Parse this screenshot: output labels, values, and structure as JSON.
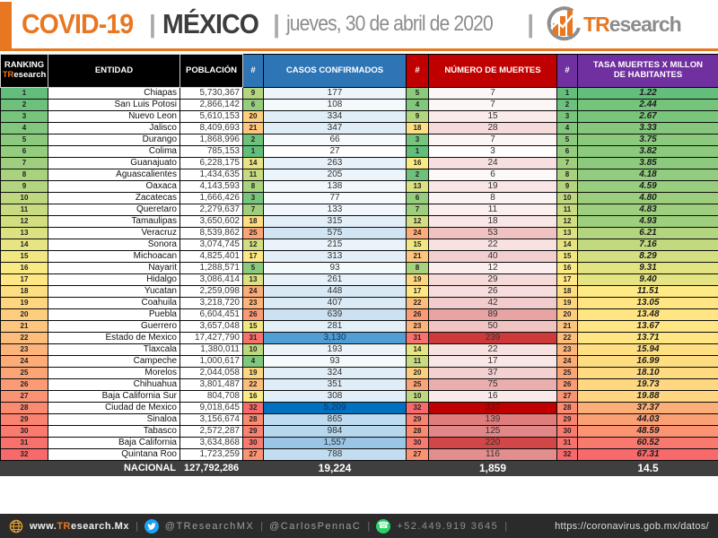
{
  "header": {
    "title": "COVID-19",
    "separator": "|",
    "region": "MÉXICO",
    "date": "jueves, 30 de abril de 2020",
    "brand": {
      "prefix": "TR",
      "suffix": "esearch"
    }
  },
  "colors": {
    "accent_orange": "#E87722",
    "header_blue": "#2E75B6",
    "header_red": "#C00000",
    "header_purple": "#7030A0",
    "nacional_bg": "#3F3F3F",
    "footer_bg": "#2B2B2B",
    "twitter_blue": "#1DA1F2",
    "whatsapp_green": "#25D366",
    "scale_green": "#63BE7B",
    "scale_yellow": "#FFEB84",
    "scale_red": "#F8696B",
    "casos_blue": "#0070C0",
    "muertes_red": "#C00000"
  },
  "chart_data": {
    "type": "table",
    "title": "COVID-19 | MÉXICO | jueves, 30 de abril de 2020",
    "headers": {
      "ranking_line1": "RANKING",
      "brand_prefix": "TR",
      "brand_suffix": "esearch",
      "entidad": "ENTIDAD",
      "poblacion": "POBLACIÓN",
      "hash": "#",
      "casos": "CASOS CONFIRMADOS",
      "muertes": "NÚMERO DE MUERTES",
      "tasa": "TASA MUERTES X MILLON DE HABITANTES"
    },
    "rows": [
      {
        "rank": 1,
        "entidad": "Chiapas",
        "poblacion": "5,730,367",
        "casos_rank": 9,
        "casos": "177",
        "muertes_rank": 5,
        "muertes": "7",
        "tasa_rank": 1,
        "tasa": "1.22"
      },
      {
        "rank": 2,
        "entidad": "San Luis Potosi",
        "poblacion": "2,866,142",
        "casos_rank": 6,
        "casos": "108",
        "muertes_rank": 4,
        "muertes": "7",
        "tasa_rank": 2,
        "tasa": "2.44"
      },
      {
        "rank": 3,
        "entidad": "Nuevo Leon",
        "poblacion": "5,610,153",
        "casos_rank": 20,
        "casos": "334",
        "muertes_rank": 9,
        "muertes": "15",
        "tasa_rank": 3,
        "tasa": "2.67"
      },
      {
        "rank": 4,
        "entidad": "Jalisco",
        "poblacion": "8,409,693",
        "casos_rank": 21,
        "casos": "347",
        "muertes_rank": 18,
        "muertes": "28",
        "tasa_rank": 4,
        "tasa": "3.33"
      },
      {
        "rank": 5,
        "entidad": "Durango",
        "poblacion": "1,868,996",
        "casos_rank": 2,
        "casos": "66",
        "muertes_rank": 3,
        "muertes": "7",
        "tasa_rank": 5,
        "tasa": "3.75"
      },
      {
        "rank": 6,
        "entidad": "Colima",
        "poblacion": "785,153",
        "casos_rank": 1,
        "casos": "27",
        "muertes_rank": 1,
        "muertes": "3",
        "tasa_rank": 6,
        "tasa": "3.82"
      },
      {
        "rank": 7,
        "entidad": "Guanajuato",
        "poblacion": "6,228,175",
        "casos_rank": 14,
        "casos": "263",
        "muertes_rank": 16,
        "muertes": "24",
        "tasa_rank": 7,
        "tasa": "3.85"
      },
      {
        "rank": 8,
        "entidad": "Aguascalientes",
        "poblacion": "1,434,635",
        "casos_rank": 11,
        "casos": "205",
        "muertes_rank": 2,
        "muertes": "6",
        "tasa_rank": 8,
        "tasa": "4.18"
      },
      {
        "rank": 9,
        "entidad": "Oaxaca",
        "poblacion": "4,143,593",
        "casos_rank": 8,
        "casos": "138",
        "muertes_rank": 13,
        "muertes": "19",
        "tasa_rank": 9,
        "tasa": "4.59"
      },
      {
        "rank": 10,
        "entidad": "Zacatecas",
        "poblacion": "1,666,426",
        "casos_rank": 3,
        "casos": "77",
        "muertes_rank": 6,
        "muertes": "8",
        "tasa_rank": 10,
        "tasa": "4.80"
      },
      {
        "rank": 11,
        "entidad": "Queretaro",
        "poblacion": "2,279,637",
        "casos_rank": 7,
        "casos": "133",
        "muertes_rank": 7,
        "muertes": "11",
        "tasa_rank": 11,
        "tasa": "4.83"
      },
      {
        "rank": 12,
        "entidad": "Tamaulipas",
        "poblacion": "3,650,602",
        "casos_rank": 18,
        "casos": "315",
        "muertes_rank": 12,
        "muertes": "18",
        "tasa_rank": 12,
        "tasa": "4.93"
      },
      {
        "rank": 13,
        "entidad": "Veracruz",
        "poblacion": "8,539,862",
        "casos_rank": 25,
        "casos": "575",
        "muertes_rank": 24,
        "muertes": "53",
        "tasa_rank": 13,
        "tasa": "6.21"
      },
      {
        "rank": 14,
        "entidad": "Sonora",
        "poblacion": "3,074,745",
        "casos_rank": 12,
        "casos": "215",
        "muertes_rank": 15,
        "muertes": "22",
        "tasa_rank": 14,
        "tasa": "7.16"
      },
      {
        "rank": 15,
        "entidad": "Michoacan",
        "poblacion": "4,825,401",
        "casos_rank": 17,
        "casos": "313",
        "muertes_rank": 21,
        "muertes": "40",
        "tasa_rank": 15,
        "tasa": "8.29"
      },
      {
        "rank": 16,
        "entidad": "Nayarit",
        "poblacion": "1,288,571",
        "casos_rank": 5,
        "casos": "93",
        "muertes_rank": 8,
        "muertes": "12",
        "tasa_rank": 16,
        "tasa": "9.31"
      },
      {
        "rank": 17,
        "entidad": "Hidalgo",
        "poblacion": "3,086,414",
        "casos_rank": 13,
        "casos": "261",
        "muertes_rank": 19,
        "muertes": "29",
        "tasa_rank": 17,
        "tasa": "9.40"
      },
      {
        "rank": 18,
        "entidad": "Yucatan",
        "poblacion": "2,259,098",
        "casos_rank": 24,
        "casos": "448",
        "muertes_rank": 17,
        "muertes": "26",
        "tasa_rank": 18,
        "tasa": "11.51"
      },
      {
        "rank": 19,
        "entidad": "Coahuila",
        "poblacion": "3,218,720",
        "casos_rank": 23,
        "casos": "407",
        "muertes_rank": 22,
        "muertes": "42",
        "tasa_rank": 19,
        "tasa": "13.05"
      },
      {
        "rank": 20,
        "entidad": "Puebla",
        "poblacion": "6,604,451",
        "casos_rank": 26,
        "casos": "639",
        "muertes_rank": 26,
        "muertes": "89",
        "tasa_rank": 20,
        "tasa": "13.48"
      },
      {
        "rank": 21,
        "entidad": "Guerrero",
        "poblacion": "3,657,048",
        "casos_rank": 15,
        "casos": "281",
        "muertes_rank": 23,
        "muertes": "50",
        "tasa_rank": 21,
        "tasa": "13.67"
      },
      {
        "rank": 22,
        "entidad": "Estado de Mexico",
        "poblacion": "17,427,790",
        "casos_rank": 31,
        "casos": "3,130",
        "muertes_rank": 31,
        "muertes": "239",
        "tasa_rank": 22,
        "tasa": "13.71"
      },
      {
        "rank": 23,
        "entidad": "Tlaxcala",
        "poblacion": "1,380,011",
        "casos_rank": 10,
        "casos": "193",
        "muertes_rank": 14,
        "muertes": "22",
        "tasa_rank": 23,
        "tasa": "15.94"
      },
      {
        "rank": 24,
        "entidad": "Campeche",
        "poblacion": "1,000,617",
        "casos_rank": 4,
        "casos": "93",
        "muertes_rank": 11,
        "muertes": "17",
        "tasa_rank": 24,
        "tasa": "16.99"
      },
      {
        "rank": 25,
        "entidad": "Morelos",
        "poblacion": "2,044,058",
        "casos_rank": 19,
        "casos": "324",
        "muertes_rank": 20,
        "muertes": "37",
        "tasa_rank": 25,
        "tasa": "18.10"
      },
      {
        "rank": 26,
        "entidad": "Chihuahua",
        "poblacion": "3,801,487",
        "casos_rank": 22,
        "casos": "351",
        "muertes_rank": 25,
        "muertes": "75",
        "tasa_rank": 26,
        "tasa": "19.73"
      },
      {
        "rank": 27,
        "entidad": "Baja California Sur",
        "poblacion": "804,708",
        "casos_rank": 16,
        "casos": "308",
        "muertes_rank": 10,
        "muertes": "16",
        "tasa_rank": 27,
        "tasa": "19.88"
      },
      {
        "rank": 28,
        "entidad": "Ciudad de Mexico",
        "poblacion": "9,018,645",
        "casos_rank": 32,
        "casos": "5,209",
        "muertes_rank": 32,
        "muertes": "337",
        "tasa_rank": 28,
        "tasa": "37.37"
      },
      {
        "rank": 29,
        "entidad": "Sinaloa",
        "poblacion": "3,156,674",
        "casos_rank": 28,
        "casos": "865",
        "muertes_rank": 29,
        "muertes": "139",
        "tasa_rank": 29,
        "tasa": "44.03"
      },
      {
        "rank": 30,
        "entidad": "Tabasco",
        "poblacion": "2,572,287",
        "casos_rank": 29,
        "casos": "984",
        "muertes_rank": 28,
        "muertes": "125",
        "tasa_rank": 30,
        "tasa": "48.59"
      },
      {
        "rank": 31,
        "entidad": "Baja California",
        "poblacion": "3,634,868",
        "casos_rank": 30,
        "casos": "1,557",
        "muertes_rank": 30,
        "muertes": "220",
        "tasa_rank": 31,
        "tasa": "60.52"
      },
      {
        "rank": 32,
        "entidad": "Quintana Roo",
        "poblacion": "1,723,259",
        "casos_rank": 27,
        "casos": "788",
        "muertes_rank": 27,
        "muertes": "116",
        "tasa_rank": 32,
        "tasa": "67.31"
      }
    ],
    "nacional": {
      "label": "NACIONAL",
      "poblacion": "127,792,286",
      "casos": "19,224",
      "muertes": "1,859",
      "tasa": "14.5"
    }
  },
  "footer": {
    "website_prefix": "www.",
    "website_suffix": ".Mx",
    "twitter_handle": "@TResearchMX",
    "personal_handle": "@CarlosPennaC",
    "phone": "+52.449.919 3645",
    "separator": "|",
    "source_url": "https://coronavirus.gob.mx/datos/"
  }
}
